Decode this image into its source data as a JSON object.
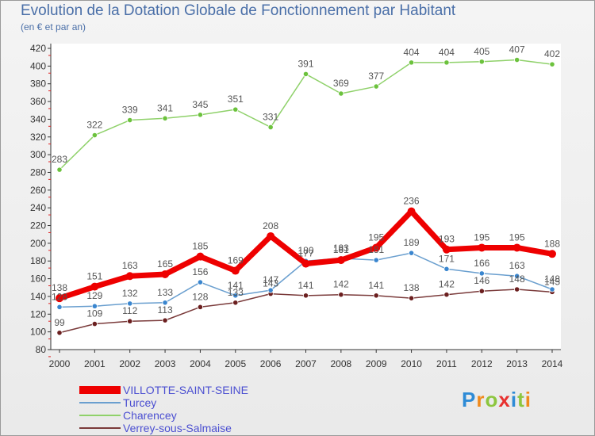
{
  "header": {
    "title": "Evolution de la Dotation Globale de Fonctionnement par Habitant",
    "subtitle": "(en € et par an)"
  },
  "logo": {
    "text": "Proxiti",
    "colors": [
      "#2e8bd6",
      "#f08a1c",
      "#8dc63f",
      "#e8312f",
      "#2e8bd6",
      "#8dc63f",
      "#f08a1c"
    ]
  },
  "chart_data": {
    "type": "line",
    "title": "Evolution de la Dotation Globale de Fonctionnement par Habitant",
    "subtitle": "(en € et par an)",
    "xlabel": "",
    "ylabel": "",
    "ylim": [
      80,
      420
    ],
    "yticks": [
      80,
      100,
      120,
      140,
      160,
      180,
      200,
      220,
      240,
      260,
      280,
      300,
      320,
      340,
      360,
      380,
      400,
      420
    ],
    "grid": false,
    "legend": "bottom-left",
    "x": [
      "2000",
      "2001",
      "2002",
      "2003",
      "2004",
      "2005",
      "2006",
      "2007",
      "2008",
      "2009",
      "2010",
      "2011",
      "2012",
      "2013",
      "2014"
    ],
    "series": [
      {
        "name": "Charencey",
        "color": "#8fd16a",
        "marker": "#6cc23d",
        "width": 1.5,
        "values": [
          283,
          322,
          339,
          341,
          345,
          351,
          331,
          391,
          369,
          377,
          404,
          404,
          405,
          407,
          402
        ]
      },
      {
        "name": "Verrey-sous-Salmaise",
        "color": "#7a3a3a",
        "marker": "#6b1f1f",
        "width": 1.5,
        "values": [
          99,
          109,
          112,
          113,
          128,
          133,
          143,
          141,
          142,
          141,
          138,
          142,
          146,
          148,
          145
        ]
      },
      {
        "name": "Turcey",
        "color": "#6a9fcf",
        "marker": "#3a86cf",
        "width": 1.5,
        "values": [
          128,
          129,
          132,
          133,
          156,
          141,
          147,
          180,
          183,
          181,
          189,
          171,
          166,
          163,
          148
        ]
      },
      {
        "name": "VILLOTTE-SAINT-SEINE",
        "color": "#ee0000",
        "marker": "#ee0000",
        "width": 7,
        "values": [
          138,
          151,
          163,
          165,
          185,
          169,
          208,
          177,
          181,
          195,
          236,
          193,
          195,
          195,
          188
        ]
      }
    ],
    "legend_order": [
      "VILLOTTE-SAINT-SEINE",
      "Turcey",
      "Charencey",
      "Verrey-sous-Salmaise"
    ]
  }
}
